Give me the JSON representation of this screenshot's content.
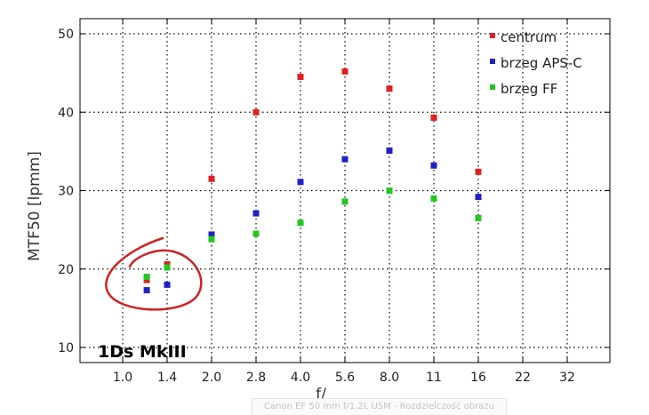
{
  "chart_data": {
    "type": "scatter",
    "xlabel": "f/",
    "ylabel": "MTF50 [lpmm]",
    "ylim": [
      8,
      52
    ],
    "x_categories": [
      "1.0",
      "1.4",
      "2.0",
      "2.8",
      "4.0",
      "5.6",
      "8.0",
      "11",
      "16",
      "22",
      "32"
    ],
    "yticks": [
      10,
      20,
      30,
      40,
      50
    ],
    "grid": true,
    "legend_position": "top-right",
    "series": [
      {
        "name": "centrum",
        "color": "#e02020",
        "points": [
          {
            "x": "1.2",
            "y": 18.6
          },
          {
            "x": "1.4",
            "y": 20.6
          },
          {
            "x": "2.0",
            "y": 31.5
          },
          {
            "x": "2.8",
            "y": 40.0
          },
          {
            "x": "4.0",
            "y": 44.5
          },
          {
            "x": "5.6",
            "y": 45.2
          },
          {
            "x": "8.0",
            "y": 43.0
          },
          {
            "x": "11",
            "y": 39.3
          },
          {
            "x": "16",
            "y": 32.4
          }
        ]
      },
      {
        "name": "brzeg APS-C",
        "color": "#2020c8",
        "points": [
          {
            "x": "1.2",
            "y": 17.3
          },
          {
            "x": "1.4",
            "y": 18.0
          },
          {
            "x": "2.0",
            "y": 24.4
          },
          {
            "x": "2.8",
            "y": 27.1
          },
          {
            "x": "4.0",
            "y": 31.1
          },
          {
            "x": "5.6",
            "y": 34.0
          },
          {
            "x": "8.0",
            "y": 35.1
          },
          {
            "x": "11",
            "y": 33.2
          },
          {
            "x": "16",
            "y": 29.2
          }
        ]
      },
      {
        "name": "brzeg FF",
        "color": "#20c820",
        "points": [
          {
            "x": "1.2",
            "y": 19.0
          },
          {
            "x": "1.4",
            "y": 20.2
          },
          {
            "x": "2.0",
            "y": 23.8
          },
          {
            "x": "2.8",
            "y": 24.5
          },
          {
            "x": "4.0",
            "y": 25.9
          },
          {
            "x": "5.6",
            "y": 28.6
          },
          {
            "x": "8.0",
            "y": 30.0
          },
          {
            "x": "11",
            "y": 29.0
          },
          {
            "x": "16",
            "y": 26.5
          }
        ]
      }
    ],
    "annotations": [
      {
        "text": "1Ds MkIII"
      }
    ],
    "highlight_color": "#d02020"
  },
  "caption": "Canon EF 50 mm f/1,2L USM - Rozdzielczość obrazu"
}
